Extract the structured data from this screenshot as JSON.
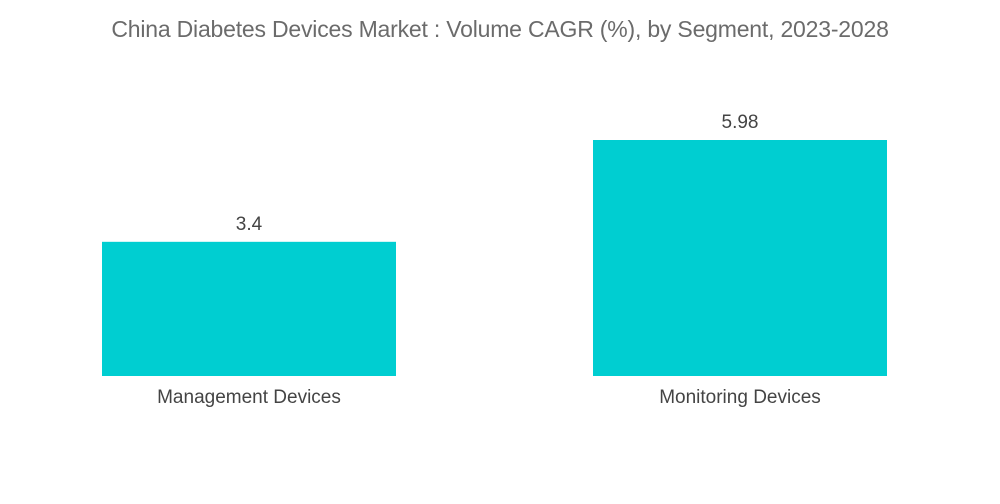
{
  "chart_data": {
    "type": "bar",
    "title": "China Diabetes Devices Market : Volume CAGR (%), by Segment, 2023-2028",
    "categories": [
      "Management Devices",
      "Monitoring Devices"
    ],
    "values": [
      3.4,
      5.98
    ],
    "value_labels": [
      "3.4",
      "5.98"
    ],
    "xlabel": "",
    "ylabel": "",
    "ylim": [
      0,
      5.98
    ],
    "grid": false,
    "legend": "none",
    "bar_color": "#00CED1"
  }
}
